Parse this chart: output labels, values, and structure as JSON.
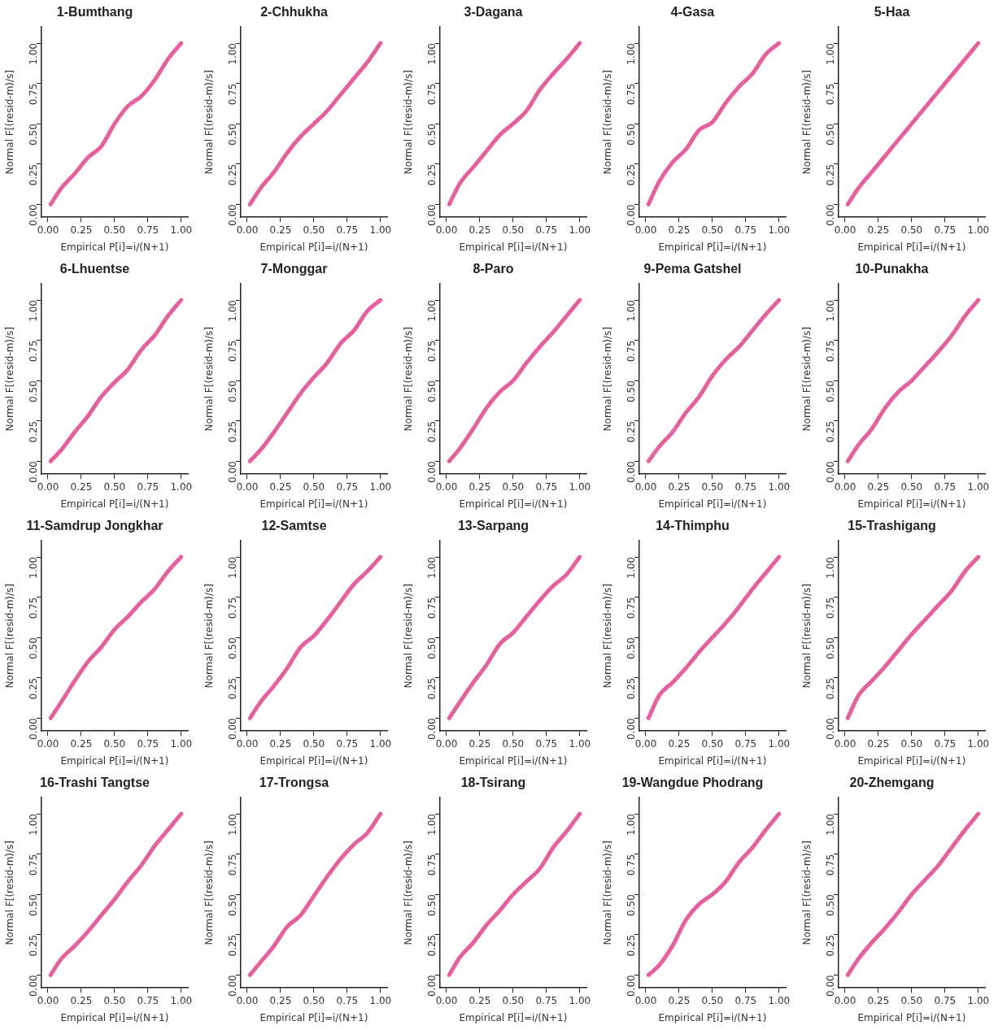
{
  "chart_data": [
    {
      "type": "line",
      "title": "1-Bumthang",
      "xlabel": "Empirical P[i]=i/(N+1)",
      "ylabel": "Normal F[(resid-m)/s]",
      "color": "#e5609e",
      "xlim": [
        -0.05,
        1.05
      ],
      "ylim": [
        -0.08,
        1.1
      ],
      "xticks": [
        {
          "value": 0,
          "label": "0.00"
        },
        {
          "value": 0.25,
          "label": "0.25"
        },
        {
          "value": 0.5,
          "label": "0.50"
        },
        {
          "value": 0.75,
          "label": "0.75"
        },
        {
          "value": 1,
          "label": "1.00"
        }
      ],
      "yticks": [
        {
          "value": 0,
          "label": "0.00"
        },
        {
          "value": 0.25,
          "label": "0.25"
        },
        {
          "value": 0.5,
          "label": "0.50"
        },
        {
          "value": 0.75,
          "label": "0.75"
        },
        {
          "value": 1,
          "label": "1.00"
        }
      ],
      "x": [
        0.02,
        0.1,
        0.2,
        0.3,
        0.4,
        0.5,
        0.6,
        0.7,
        0.8,
        0.9,
        1.0
      ],
      "values": [
        0.0,
        0.1,
        0.19,
        0.29,
        0.36,
        0.5,
        0.61,
        0.67,
        0.77,
        0.9,
        1.0
      ]
    },
    {
      "type": "line",
      "title": "2-Chhukha",
      "xlabel": "Empirical P[i]=i/(N+1)",
      "ylabel": "Normal F[(resid-m)/s]",
      "color": "#e5609e",
      "xlim": [
        -0.05,
        1.05
      ],
      "ylim": [
        -0.08,
        1.1
      ],
      "xticks": [
        {
          "value": 0,
          "label": "0.00"
        },
        {
          "value": 0.25,
          "label": "0.25"
        },
        {
          "value": 0.5,
          "label": "0.50"
        },
        {
          "value": 0.75,
          "label": "0.75"
        },
        {
          "value": 1,
          "label": "1.00"
        }
      ],
      "yticks": [
        {
          "value": 0,
          "label": "0.00"
        },
        {
          "value": 0.25,
          "label": "0.25"
        },
        {
          "value": 0.5,
          "label": "0.50"
        },
        {
          "value": 0.75,
          "label": "0.75"
        },
        {
          "value": 1,
          "label": "1.00"
        }
      ],
      "x": [
        0.02,
        0.1,
        0.2,
        0.3,
        0.4,
        0.5,
        0.6,
        0.7,
        0.8,
        0.9,
        1.0
      ],
      "values": [
        0.0,
        0.1,
        0.2,
        0.32,
        0.42,
        0.5,
        0.58,
        0.68,
        0.78,
        0.88,
        1.0
      ]
    },
    {
      "type": "line",
      "title": "3-Dagana",
      "xlabel": "Empirical P[i]=i/(N+1)",
      "ylabel": "Normal F[(resid-m)/s]",
      "color": "#e5609e",
      "xlim": [
        -0.05,
        1.05
      ],
      "ylim": [
        -0.08,
        1.1
      ],
      "xticks": [
        {
          "value": 0,
          "label": "0.00"
        },
        {
          "value": 0.25,
          "label": "0.25"
        },
        {
          "value": 0.5,
          "label": "0.50"
        },
        {
          "value": 0.75,
          "label": "0.75"
        },
        {
          "value": 1,
          "label": "1.00"
        }
      ],
      "yticks": [
        {
          "value": 0,
          "label": "0.00"
        },
        {
          "value": 0.25,
          "label": "0.25"
        },
        {
          "value": 0.5,
          "label": "0.50"
        },
        {
          "value": 0.75,
          "label": "0.75"
        },
        {
          "value": 1,
          "label": "1.00"
        }
      ],
      "x": [
        0.02,
        0.1,
        0.2,
        0.3,
        0.4,
        0.5,
        0.6,
        0.7,
        0.8,
        0.9,
        1.0
      ],
      "values": [
        0.0,
        0.13,
        0.23,
        0.33,
        0.43,
        0.5,
        0.58,
        0.71,
        0.81,
        0.9,
        1.0
      ]
    },
    {
      "type": "line",
      "title": "4-Gasa",
      "xlabel": "Empirical P[i]=i/(N+1)",
      "ylabel": "Normal F[(resid-m)/s]",
      "color": "#e5609e",
      "xlim": [
        -0.05,
        1.05
      ],
      "ylim": [
        -0.08,
        1.1
      ],
      "xticks": [
        {
          "value": 0,
          "label": "0.00"
        },
        {
          "value": 0.25,
          "label": "0.25"
        },
        {
          "value": 0.5,
          "label": "0.50"
        },
        {
          "value": 0.75,
          "label": "0.75"
        },
        {
          "value": 1,
          "label": "1.00"
        }
      ],
      "yticks": [
        {
          "value": 0,
          "label": "0.00"
        },
        {
          "value": 0.25,
          "label": "0.25"
        },
        {
          "value": 0.5,
          "label": "0.50"
        },
        {
          "value": 0.75,
          "label": "0.75"
        },
        {
          "value": 1,
          "label": "1.00"
        }
      ],
      "x": [
        0.02,
        0.1,
        0.2,
        0.3,
        0.4,
        0.5,
        0.6,
        0.7,
        0.8,
        0.9,
        1.0
      ],
      "values": [
        0.0,
        0.14,
        0.26,
        0.34,
        0.46,
        0.51,
        0.63,
        0.73,
        0.81,
        0.93,
        1.0
      ]
    },
    {
      "type": "line",
      "title": "5-Haa",
      "xlabel": "Empirical P[i]=i/(N+1)",
      "ylabel": "Normal F[(resid-m)/s]",
      "color": "#e5609e",
      "xlim": [
        -0.05,
        1.05
      ],
      "ylim": [
        -0.08,
        1.1
      ],
      "xticks": [
        {
          "value": 0,
          "label": "0.00"
        },
        {
          "value": 0.25,
          "label": "0.25"
        },
        {
          "value": 0.5,
          "label": "0.50"
        },
        {
          "value": 0.75,
          "label": "0.75"
        },
        {
          "value": 1,
          "label": "1.00"
        }
      ],
      "yticks": [
        {
          "value": 0,
          "label": "0.00"
        },
        {
          "value": 0.25,
          "label": "0.25"
        },
        {
          "value": 0.5,
          "label": "0.50"
        },
        {
          "value": 0.75,
          "label": "0.75"
        },
        {
          "value": 1,
          "label": "1.00"
        }
      ],
      "x": [
        0.02,
        0.1,
        0.2,
        0.3,
        0.4,
        0.5,
        0.6,
        0.7,
        0.8,
        0.9,
        1.0
      ],
      "values": [
        0.0,
        0.1,
        0.2,
        0.3,
        0.4,
        0.5,
        0.6,
        0.7,
        0.8,
        0.9,
        1.0
      ]
    },
    {
      "type": "line",
      "title": "6-Lhuentse",
      "xlabel": "Empirical P[i]=i/(N+1)",
      "ylabel": "Normal F[(resid-m)/s]",
      "color": "#e5609e",
      "xlim": [
        -0.05,
        1.05
      ],
      "ylim": [
        -0.08,
        1.1
      ],
      "xticks": [
        {
          "value": 0,
          "label": "0.00"
        },
        {
          "value": 0.25,
          "label": "0.25"
        },
        {
          "value": 0.5,
          "label": "0.50"
        },
        {
          "value": 0.75,
          "label": "0.75"
        },
        {
          "value": 1,
          "label": "1.00"
        }
      ],
      "yticks": [
        {
          "value": 0,
          "label": "0.00"
        },
        {
          "value": 0.25,
          "label": "0.25"
        },
        {
          "value": 0.5,
          "label": "0.50"
        },
        {
          "value": 0.75,
          "label": "0.75"
        },
        {
          "value": 1,
          "label": "1.00"
        }
      ],
      "x": [
        0.02,
        0.1,
        0.2,
        0.3,
        0.4,
        0.5,
        0.6,
        0.7,
        0.8,
        0.9,
        1.0
      ],
      "values": [
        0.0,
        0.07,
        0.18,
        0.28,
        0.4,
        0.49,
        0.57,
        0.69,
        0.78,
        0.9,
        1.0
      ]
    },
    {
      "type": "line",
      "title": "7-Monggar",
      "xlabel": "Empirical P[i]=i/(N+1)",
      "ylabel": "Normal F[(resid-m)/s]",
      "color": "#e5609e",
      "xlim": [
        -0.05,
        1.05
      ],
      "ylim": [
        -0.08,
        1.1
      ],
      "xticks": [
        {
          "value": 0,
          "label": "0.00"
        },
        {
          "value": 0.25,
          "label": "0.25"
        },
        {
          "value": 0.5,
          "label": "0.50"
        },
        {
          "value": 0.75,
          "label": "0.75"
        },
        {
          "value": 1,
          "label": "1.00"
        }
      ],
      "yticks": [
        {
          "value": 0,
          "label": "0.00"
        },
        {
          "value": 0.25,
          "label": "0.25"
        },
        {
          "value": 0.5,
          "label": "0.50"
        },
        {
          "value": 0.75,
          "label": "0.75"
        },
        {
          "value": 1,
          "label": "1.00"
        }
      ],
      "x": [
        0.02,
        0.1,
        0.2,
        0.3,
        0.4,
        0.5,
        0.6,
        0.7,
        0.8,
        0.9,
        1.0
      ],
      "values": [
        0.0,
        0.07,
        0.18,
        0.3,
        0.42,
        0.52,
        0.61,
        0.73,
        0.81,
        0.93,
        1.0
      ]
    },
    {
      "type": "line",
      "title": "8-Paro",
      "xlabel": "Empirical P[i]=i/(N+1)",
      "ylabel": "Normal F[(resid-m)/s]",
      "color": "#e5609e",
      "xlim": [
        -0.05,
        1.05
      ],
      "ylim": [
        -0.08,
        1.1
      ],
      "xticks": [
        {
          "value": 0,
          "label": "0.00"
        },
        {
          "value": 0.25,
          "label": "0.25"
        },
        {
          "value": 0.5,
          "label": "0.50"
        },
        {
          "value": 0.75,
          "label": "0.75"
        },
        {
          "value": 1,
          "label": "1.00"
        }
      ],
      "yticks": [
        {
          "value": 0,
          "label": "0.00"
        },
        {
          "value": 0.25,
          "label": "0.25"
        },
        {
          "value": 0.5,
          "label": "0.50"
        },
        {
          "value": 0.75,
          "label": "0.75"
        },
        {
          "value": 1,
          "label": "1.00"
        }
      ],
      "x": [
        0.02,
        0.1,
        0.2,
        0.3,
        0.4,
        0.5,
        0.6,
        0.7,
        0.8,
        0.9,
        1.0
      ],
      "values": [
        0.0,
        0.08,
        0.2,
        0.33,
        0.43,
        0.5,
        0.61,
        0.71,
        0.8,
        0.9,
        1.0
      ]
    },
    {
      "type": "line",
      "title": "9-Pema Gatshel",
      "xlabel": "Empirical P[i]=i/(N+1)",
      "ylabel": "Normal F[(resid-m)/s]",
      "color": "#e5609e",
      "xlim": [
        -0.05,
        1.05
      ],
      "ylim": [
        -0.08,
        1.1
      ],
      "xticks": [
        {
          "value": 0,
          "label": "0.00"
        },
        {
          "value": 0.25,
          "label": "0.25"
        },
        {
          "value": 0.5,
          "label": "0.50"
        },
        {
          "value": 0.75,
          "label": "0.75"
        },
        {
          "value": 1,
          "label": "1.00"
        }
      ],
      "yticks": [
        {
          "value": 0,
          "label": "0.00"
        },
        {
          "value": 0.25,
          "label": "0.25"
        },
        {
          "value": 0.5,
          "label": "0.50"
        },
        {
          "value": 0.75,
          "label": "0.75"
        },
        {
          "value": 1,
          "label": "1.00"
        }
      ],
      "x": [
        0.02,
        0.1,
        0.2,
        0.3,
        0.4,
        0.5,
        0.6,
        0.7,
        0.8,
        0.9,
        1.0
      ],
      "values": [
        0.0,
        0.09,
        0.18,
        0.3,
        0.4,
        0.53,
        0.63,
        0.71,
        0.81,
        0.91,
        1.0
      ]
    },
    {
      "type": "line",
      "title": "10-Punakha",
      "xlabel": "Empirical P[i]=i/(N+1)",
      "ylabel": "Normal F[(resid-m)/s]",
      "color": "#e5609e",
      "xlim": [
        -0.05,
        1.05
      ],
      "ylim": [
        -0.08,
        1.1
      ],
      "xticks": [
        {
          "value": 0,
          "label": "0.00"
        },
        {
          "value": 0.25,
          "label": "0.25"
        },
        {
          "value": 0.5,
          "label": "0.50"
        },
        {
          "value": 0.75,
          "label": "0.75"
        },
        {
          "value": 1,
          "label": "1.00"
        }
      ],
      "yticks": [
        {
          "value": 0,
          "label": "0.00"
        },
        {
          "value": 0.25,
          "label": "0.25"
        },
        {
          "value": 0.5,
          "label": "0.50"
        },
        {
          "value": 0.75,
          "label": "0.75"
        },
        {
          "value": 1,
          "label": "1.00"
        }
      ],
      "x": [
        0.02,
        0.1,
        0.2,
        0.3,
        0.4,
        0.5,
        0.6,
        0.7,
        0.8,
        0.9,
        1.0
      ],
      "values": [
        0.0,
        0.1,
        0.2,
        0.33,
        0.43,
        0.5,
        0.59,
        0.68,
        0.78,
        0.9,
        1.0
      ]
    },
    {
      "type": "line",
      "title": "11-Samdrup Jongkhar",
      "xlabel": "Empirical P[i]=i/(N+1)",
      "ylabel": "Normal F[(resid-m)/s]",
      "color": "#e5609e",
      "xlim": [
        -0.05,
        1.05
      ],
      "ylim": [
        -0.08,
        1.1
      ],
      "xticks": [
        {
          "value": 0,
          "label": "0.00"
        },
        {
          "value": 0.25,
          "label": "0.25"
        },
        {
          "value": 0.5,
          "label": "0.50"
        },
        {
          "value": 0.75,
          "label": "0.75"
        },
        {
          "value": 1,
          "label": "1.00"
        }
      ],
      "yticks": [
        {
          "value": 0,
          "label": "0.00"
        },
        {
          "value": 0.25,
          "label": "0.25"
        },
        {
          "value": 0.5,
          "label": "0.50"
        },
        {
          "value": 0.75,
          "label": "0.75"
        },
        {
          "value": 1,
          "label": "1.00"
        }
      ],
      "x": [
        0.02,
        0.1,
        0.2,
        0.3,
        0.4,
        0.5,
        0.6,
        0.7,
        0.8,
        0.9,
        1.0
      ],
      "values": [
        0.0,
        0.1,
        0.23,
        0.35,
        0.44,
        0.55,
        0.63,
        0.72,
        0.8,
        0.91,
        1.0
      ]
    },
    {
      "type": "line",
      "title": "12-Samtse",
      "xlabel": "Empirical P[i]=i/(N+1)",
      "ylabel": "Normal F[(resid-m)/s]",
      "color": "#e5609e",
      "xlim": [
        -0.05,
        1.05
      ],
      "ylim": [
        -0.08,
        1.1
      ],
      "xticks": [
        {
          "value": 0,
          "label": "0.00"
        },
        {
          "value": 0.25,
          "label": "0.25"
        },
        {
          "value": 0.5,
          "label": "0.50"
        },
        {
          "value": 0.75,
          "label": "0.75"
        },
        {
          "value": 1,
          "label": "1.00"
        }
      ],
      "yticks": [
        {
          "value": 0,
          "label": "0.00"
        },
        {
          "value": 0.25,
          "label": "0.25"
        },
        {
          "value": 0.5,
          "label": "0.50"
        },
        {
          "value": 0.75,
          "label": "0.75"
        },
        {
          "value": 1,
          "label": "1.00"
        }
      ],
      "x": [
        0.02,
        0.1,
        0.2,
        0.3,
        0.4,
        0.5,
        0.6,
        0.7,
        0.8,
        0.9,
        1.0
      ],
      "values": [
        0.0,
        0.1,
        0.2,
        0.31,
        0.44,
        0.51,
        0.61,
        0.72,
        0.83,
        0.91,
        1.0
      ]
    },
    {
      "type": "line",
      "title": "13-Sarpang",
      "xlabel": "Empirical P[i]=i/(N+1)",
      "ylabel": "Normal F[(resid-m)/s]",
      "color": "#e5609e",
      "xlim": [
        -0.05,
        1.05
      ],
      "ylim": [
        -0.08,
        1.1
      ],
      "xticks": [
        {
          "value": 0,
          "label": "0.00"
        },
        {
          "value": 0.25,
          "label": "0.25"
        },
        {
          "value": 0.5,
          "label": "0.50"
        },
        {
          "value": 0.75,
          "label": "0.75"
        },
        {
          "value": 1,
          "label": "1.00"
        }
      ],
      "yticks": [
        {
          "value": 0,
          "label": "0.00"
        },
        {
          "value": 0.25,
          "label": "0.25"
        },
        {
          "value": 0.5,
          "label": "0.50"
        },
        {
          "value": 0.75,
          "label": "0.75"
        },
        {
          "value": 1,
          "label": "1.00"
        }
      ],
      "x": [
        0.02,
        0.1,
        0.2,
        0.3,
        0.4,
        0.5,
        0.6,
        0.7,
        0.8,
        0.9,
        1.0
      ],
      "values": [
        0.0,
        0.1,
        0.22,
        0.33,
        0.46,
        0.53,
        0.63,
        0.73,
        0.82,
        0.89,
        1.0
      ]
    },
    {
      "type": "line",
      "title": "14-Thimphu",
      "xlabel": "Empirical P[i]=i/(N+1)",
      "ylabel": "Normal F[(resid-m)/s]",
      "color": "#e5609e",
      "xlim": [
        -0.05,
        1.05
      ],
      "ylim": [
        -0.08,
        1.1
      ],
      "xticks": [
        {
          "value": 0,
          "label": "0.00"
        },
        {
          "value": 0.25,
          "label": "0.25"
        },
        {
          "value": 0.5,
          "label": "0.50"
        },
        {
          "value": 0.75,
          "label": "0.75"
        },
        {
          "value": 1,
          "label": "1.00"
        }
      ],
      "yticks": [
        {
          "value": 0,
          "label": "0.00"
        },
        {
          "value": 0.25,
          "label": "0.25"
        },
        {
          "value": 0.5,
          "label": "0.50"
        },
        {
          "value": 0.75,
          "label": "0.75"
        },
        {
          "value": 1,
          "label": "1.00"
        }
      ],
      "x": [
        0.02,
        0.1,
        0.2,
        0.3,
        0.4,
        0.5,
        0.6,
        0.7,
        0.8,
        0.9,
        1.0
      ],
      "values": [
        0.0,
        0.14,
        0.22,
        0.31,
        0.41,
        0.5,
        0.59,
        0.69,
        0.8,
        0.9,
        1.0
      ]
    },
    {
      "type": "line",
      "title": "15-Trashigang",
      "xlabel": "Empirical P[i]=i/(N+1)",
      "ylabel": "Normal F[(resid-m)/s]",
      "color": "#e5609e",
      "xlim": [
        -0.05,
        1.05
      ],
      "ylim": [
        -0.08,
        1.1
      ],
      "xticks": [
        {
          "value": 0,
          "label": "0.00"
        },
        {
          "value": 0.25,
          "label": "0.25"
        },
        {
          "value": 0.5,
          "label": "0.50"
        },
        {
          "value": 0.75,
          "label": "0.75"
        },
        {
          "value": 1,
          "label": "1.00"
        }
      ],
      "yticks": [
        {
          "value": 0,
          "label": "0.00"
        },
        {
          "value": 0.25,
          "label": "0.25"
        },
        {
          "value": 0.5,
          "label": "0.50"
        },
        {
          "value": 0.75,
          "label": "0.75"
        },
        {
          "value": 1,
          "label": "1.00"
        }
      ],
      "x": [
        0.02,
        0.1,
        0.2,
        0.3,
        0.4,
        0.5,
        0.6,
        0.7,
        0.8,
        0.9,
        1.0
      ],
      "values": [
        0.0,
        0.14,
        0.23,
        0.32,
        0.42,
        0.52,
        0.61,
        0.7,
        0.79,
        0.91,
        1.0
      ]
    },
    {
      "type": "line",
      "title": "16-Trashi Tangtse",
      "xlabel": "Empirical P[i]=i/(N+1)",
      "ylabel": "Normal F[(resid-m)/s]",
      "color": "#e5609e",
      "xlim": [
        -0.05,
        1.05
      ],
      "ylim": [
        -0.08,
        1.1
      ],
      "xticks": [
        {
          "value": 0,
          "label": "0.00"
        },
        {
          "value": 0.25,
          "label": "0.25"
        },
        {
          "value": 0.5,
          "label": "0.50"
        },
        {
          "value": 0.75,
          "label": "0.75"
        },
        {
          "value": 1,
          "label": "1.00"
        }
      ],
      "yticks": [
        {
          "value": 0,
          "label": "0.00"
        },
        {
          "value": 0.25,
          "label": "0.25"
        },
        {
          "value": 0.5,
          "label": "0.50"
        },
        {
          "value": 0.75,
          "label": "0.75"
        },
        {
          "value": 1,
          "label": "1.00"
        }
      ],
      "x": [
        0.02,
        0.1,
        0.2,
        0.3,
        0.4,
        0.5,
        0.6,
        0.7,
        0.8,
        0.9,
        1.0
      ],
      "values": [
        0.0,
        0.1,
        0.18,
        0.27,
        0.37,
        0.47,
        0.58,
        0.68,
        0.8,
        0.9,
        1.0
      ]
    },
    {
      "type": "line",
      "title": "17-Trongsa",
      "xlabel": "Empirical P[i]=i/(N+1)",
      "ylabel": "Normal F[(resid-m)/s]",
      "color": "#e5609e",
      "xlim": [
        -0.05,
        1.05
      ],
      "ylim": [
        -0.08,
        1.1
      ],
      "xticks": [
        {
          "value": 0,
          "label": "0.00"
        },
        {
          "value": 0.25,
          "label": "0.25"
        },
        {
          "value": 0.5,
          "label": "0.50"
        },
        {
          "value": 0.75,
          "label": "0.75"
        },
        {
          "value": 1,
          "label": "1.00"
        }
      ],
      "yticks": [
        {
          "value": 0,
          "label": "0.00"
        },
        {
          "value": 0.25,
          "label": "0.25"
        },
        {
          "value": 0.5,
          "label": "0.50"
        },
        {
          "value": 0.75,
          "label": "0.75"
        },
        {
          "value": 1,
          "label": "1.00"
        }
      ],
      "x": [
        0.02,
        0.1,
        0.2,
        0.3,
        0.4,
        0.5,
        0.6,
        0.7,
        0.8,
        0.9,
        1.0
      ],
      "values": [
        0.0,
        0.08,
        0.18,
        0.3,
        0.37,
        0.49,
        0.61,
        0.72,
        0.81,
        0.88,
        1.0
      ]
    },
    {
      "type": "line",
      "title": "18-Tsirang",
      "xlabel": "Empirical P[i]=i/(N+1)",
      "ylabel": "Normal F[(resid-m)/s]",
      "color": "#e5609e",
      "xlim": [
        -0.05,
        1.05
      ],
      "ylim": [
        -0.08,
        1.1
      ],
      "xticks": [
        {
          "value": 0,
          "label": "0.00"
        },
        {
          "value": 0.25,
          "label": "0.25"
        },
        {
          "value": 0.5,
          "label": "0.50"
        },
        {
          "value": 0.75,
          "label": "0.75"
        },
        {
          "value": 1,
          "label": "1.00"
        }
      ],
      "yticks": [
        {
          "value": 0,
          "label": "0.00"
        },
        {
          "value": 0.25,
          "label": "0.25"
        },
        {
          "value": 0.5,
          "label": "0.50"
        },
        {
          "value": 0.75,
          "label": "0.75"
        },
        {
          "value": 1,
          "label": "1.00"
        }
      ],
      "x": [
        0.02,
        0.1,
        0.2,
        0.3,
        0.4,
        0.5,
        0.6,
        0.7,
        0.8,
        0.9,
        1.0
      ],
      "values": [
        0.0,
        0.11,
        0.2,
        0.31,
        0.4,
        0.5,
        0.58,
        0.66,
        0.79,
        0.89,
        1.0
      ]
    },
    {
      "type": "line",
      "title": "19-Wangdue Phodrang",
      "xlabel": "Empirical P[i]=i/(N+1)",
      "ylabel": "Normal F[(resid-m)/s]",
      "color": "#e5609e",
      "xlim": [
        -0.05,
        1.05
      ],
      "ylim": [
        -0.08,
        1.1
      ],
      "xticks": [
        {
          "value": 0,
          "label": "0.00"
        },
        {
          "value": 0.25,
          "label": "0.25"
        },
        {
          "value": 0.5,
          "label": "0.50"
        },
        {
          "value": 0.75,
          "label": "0.75"
        },
        {
          "value": 1,
          "label": "1.00"
        }
      ],
      "yticks": [
        {
          "value": 0,
          "label": "0.00"
        },
        {
          "value": 0.25,
          "label": "0.25"
        },
        {
          "value": 0.5,
          "label": "0.50"
        },
        {
          "value": 0.75,
          "label": "0.75"
        },
        {
          "value": 1,
          "label": "1.00"
        }
      ],
      "x": [
        0.02,
        0.1,
        0.2,
        0.3,
        0.4,
        0.5,
        0.6,
        0.7,
        0.8,
        0.9,
        1.0
      ],
      "values": [
        0.0,
        0.06,
        0.18,
        0.34,
        0.44,
        0.5,
        0.58,
        0.7,
        0.79,
        0.9,
        1.0
      ]
    },
    {
      "type": "line",
      "title": "20-Zhemgang",
      "xlabel": "Empirical P[i]=i/(N+1)",
      "ylabel": "Normal F[(resid-m)/s]",
      "color": "#e5609e",
      "xlim": [
        -0.05,
        1.05
      ],
      "ylim": [
        -0.08,
        1.1
      ],
      "xticks": [
        {
          "value": 0,
          "label": "0.00"
        },
        {
          "value": 0.25,
          "label": "0.25"
        },
        {
          "value": 0.5,
          "label": "0.50"
        },
        {
          "value": 0.75,
          "label": "0.75"
        },
        {
          "value": 1,
          "label": "1.00"
        }
      ],
      "yticks": [
        {
          "value": 0,
          "label": "0.00"
        },
        {
          "value": 0.25,
          "label": "0.25"
        },
        {
          "value": 0.5,
          "label": "0.50"
        },
        {
          "value": 0.75,
          "label": "0.75"
        },
        {
          "value": 1,
          "label": "1.00"
        }
      ],
      "x": [
        0.02,
        0.1,
        0.2,
        0.3,
        0.4,
        0.5,
        0.6,
        0.7,
        0.8,
        0.9,
        1.0
      ],
      "values": [
        0.0,
        0.1,
        0.2,
        0.29,
        0.39,
        0.5,
        0.59,
        0.68,
        0.79,
        0.9,
        1.0
      ]
    }
  ]
}
